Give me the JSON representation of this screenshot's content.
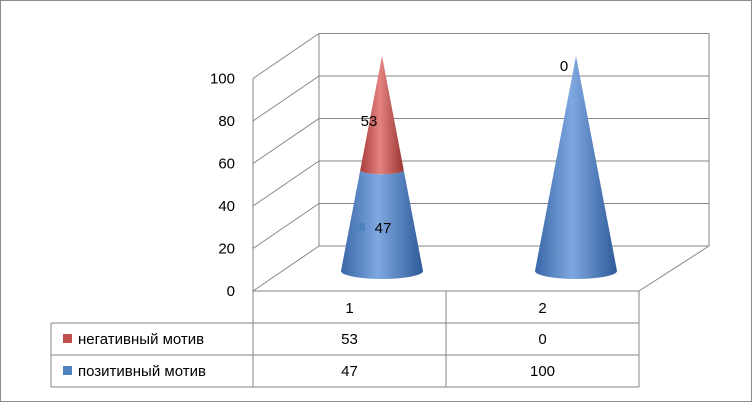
{
  "chart_data": {
    "type": "3d-stacked-cone",
    "categories": [
      "1",
      "2"
    ],
    "series": [
      {
        "name": "негативный мотив",
        "values": [
          53,
          0
        ],
        "color": "#c0504d"
      },
      {
        "name": "позитивный мотив",
        "values": [
          47,
          100
        ],
        "color": "#4f81bd"
      }
    ],
    "ylim": [
      0,
      100
    ],
    "yticks": [
      "0",
      "20",
      "40",
      "60",
      "80",
      "100"
    ],
    "grid": true,
    "legend": "data-table-bottom"
  }
}
